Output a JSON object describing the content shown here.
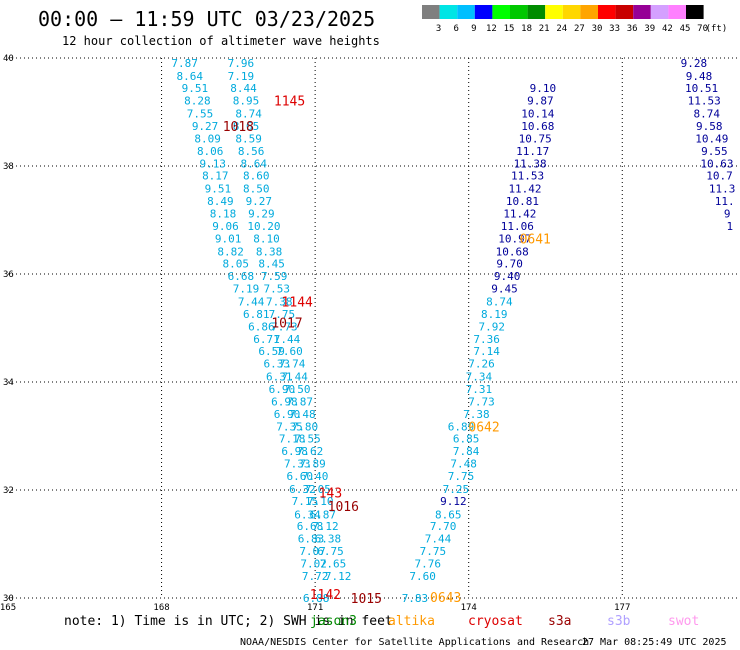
{
  "title": "00:00 – 11:59 UTC 03/23/2025",
  "subtitle": "12 hour collection of altimeter wave heights",
  "note": "note:  1) Time is in UTC; 2) SWH is in feet",
  "credit": "NOAA/NESDIS Center for Satellite Applications and Research",
  "timestamp": "27 Mar 08:25:49 UTC 2025",
  "colorbar": {
    "unit_label": "(ft)",
    "bins": [
      {
        "label": "3",
        "color": "#7f7f7f"
      },
      {
        "label": "6",
        "color": "#00e5e5"
      },
      {
        "label": "9",
        "color": "#00bfff"
      },
      {
        "label": "12",
        "color": "#0000ff"
      },
      {
        "label": "15",
        "color": "#00ff00"
      },
      {
        "label": "18",
        "color": "#00c800"
      },
      {
        "label": "21",
        "color": "#008c00"
      },
      {
        "label": "24",
        "color": "#ffff00"
      },
      {
        "label": "27",
        "color": "#ffd700"
      },
      {
        "label": "30",
        "color": "#ffa500"
      },
      {
        "label": "33",
        "color": "#ff0000"
      },
      {
        "label": "36",
        "color": "#c80000"
      },
      {
        "label": "39",
        "color": "#960096"
      },
      {
        "label": "42",
        "color": "#d4a0ff"
      },
      {
        "label": "45",
        "color": "#ff80ff"
      },
      {
        "label": "70",
        "color": "#000000"
      }
    ]
  },
  "legend": [
    {
      "name": "jason3",
      "color": "#008800"
    },
    {
      "name": "altika",
      "color": "#ff9900"
    },
    {
      "name": "cryosat",
      "color": "#dd0000"
    },
    {
      "name": "s3a",
      "color": "#990000"
    },
    {
      "name": "s3b",
      "color": "#b0a0ff"
    },
    {
      "name": "swot",
      "color": "#ff99ee"
    }
  ],
  "chart_data": {
    "type": "scatter",
    "x_ticks": [
      "165",
      "168",
      "171",
      "174",
      "177"
    ],
    "y_ticks": [
      "30",
      "32",
      "34",
      "36",
      "38",
      "40"
    ],
    "xlim": [
      165,
      179.3
    ],
    "ylim": [
      30,
      40
    ],
    "grid": true,
    "colors": {
      "c1": "#00aadd",
      "c2": "#000099"
    },
    "series": [
      {
        "color": "c1",
        "points": [
          [
            168.45,
            39.91,
            "7.87"
          ],
          [
            168.55,
            39.67,
            "8.64"
          ],
          [
            168.65,
            39.44,
            "9.51"
          ],
          [
            168.7,
            39.21,
            "8.28"
          ],
          [
            168.75,
            38.97,
            "7.55"
          ],
          [
            168.85,
            38.74,
            "9.27"
          ],
          [
            168.9,
            38.51,
            "8.09"
          ],
          [
            168.95,
            38.28,
            "8.06"
          ],
          [
            169.0,
            38.05,
            "9.13"
          ],
          [
            169.05,
            37.82,
            "8.17"
          ],
          [
            169.1,
            37.58,
            "9.51"
          ],
          [
            169.15,
            37.35,
            "8.49"
          ],
          [
            169.2,
            37.12,
            "8.18"
          ],
          [
            169.25,
            36.89,
            "9.06"
          ],
          [
            169.3,
            36.66,
            "9.01"
          ],
          [
            169.35,
            36.42,
            "8.82"
          ],
          [
            169.45,
            36.19,
            "8.05"
          ],
          [
            169.55,
            35.96,
            "6.68"
          ],
          [
            169.65,
            35.73,
            "7.19"
          ],
          [
            169.75,
            35.49,
            "7.44"
          ],
          [
            169.85,
            35.26,
            "6.81"
          ],
          [
            169.95,
            35.03,
            "6.86"
          ],
          [
            170.05,
            34.8,
            "6.71"
          ],
          [
            170.15,
            34.57,
            "6.59"
          ],
          [
            170.25,
            34.34,
            "6.33"
          ],
          [
            170.3,
            34.1,
            "6.31"
          ],
          [
            170.35,
            33.87,
            "6.90"
          ],
          [
            170.4,
            33.64,
            "6.98"
          ],
          [
            170.45,
            33.41,
            "6.90"
          ],
          [
            170.5,
            33.18,
            "7.35"
          ],
          [
            170.55,
            32.95,
            "7.18"
          ],
          [
            170.6,
            32.72,
            "6.98"
          ],
          [
            170.65,
            32.49,
            "7.33"
          ],
          [
            170.7,
            32.26,
            "6.60"
          ],
          [
            170.75,
            32.02,
            "6.32"
          ],
          [
            170.8,
            31.8,
            "7.15"
          ],
          [
            170.85,
            31.55,
            "6.34"
          ],
          [
            170.9,
            31.33,
            "6.68"
          ],
          [
            170.92,
            31.1,
            "6.83"
          ],
          [
            170.95,
            30.87,
            "7.07"
          ],
          [
            170.97,
            30.64,
            "7.02"
          ],
          [
            171.0,
            30.41,
            "7.72"
          ],
          [
            171.02,
            30.0,
            "6.88"
          ]
        ]
      },
      {
        "color": "c1",
        "points": [
          [
            169.55,
            39.91,
            "7.96"
          ],
          [
            169.55,
            39.67,
            "7.19"
          ],
          [
            169.6,
            39.44,
            "8.44"
          ],
          [
            169.65,
            39.21,
            "8.95"
          ],
          [
            169.7,
            38.97,
            "8.74"
          ],
          [
            169.65,
            38.74,
            "8.65"
          ],
          [
            169.7,
            38.51,
            "8.59"
          ],
          [
            169.75,
            38.28,
            "8.56"
          ],
          [
            169.8,
            38.05,
            "8.64"
          ],
          [
            169.85,
            37.82,
            "8.60"
          ],
          [
            169.85,
            37.58,
            "8.50"
          ],
          [
            169.9,
            37.35,
            "9.27"
          ],
          [
            169.95,
            37.12,
            "9.29"
          ],
          [
            170.0,
            36.89,
            "10.20"
          ],
          [
            170.05,
            36.66,
            "8.10"
          ],
          [
            170.1,
            36.42,
            "8.38"
          ],
          [
            170.15,
            36.19,
            "8.45"
          ],
          [
            170.2,
            35.96,
            "7.59"
          ],
          [
            170.25,
            35.73,
            "7.53"
          ],
          [
            170.3,
            35.49,
            "7.38"
          ],
          [
            170.35,
            35.26,
            "7.75"
          ],
          [
            170.4,
            35.03,
            "7.73"
          ],
          [
            170.45,
            34.8,
            "7.44"
          ],
          [
            170.5,
            34.57,
            "7.60"
          ],
          [
            170.55,
            34.34,
            "7.74"
          ],
          [
            170.6,
            34.1,
            "7.44"
          ],
          [
            170.65,
            33.87,
            "7.50"
          ],
          [
            170.7,
            33.64,
            "7.87"
          ],
          [
            170.75,
            33.41,
            "7.48"
          ],
          [
            170.8,
            33.18,
            "7.80"
          ],
          [
            170.85,
            32.95,
            "7.55"
          ],
          [
            170.9,
            32.72,
            "7.62"
          ],
          [
            170.95,
            32.49,
            "7.89"
          ],
          [
            171.0,
            32.26,
            "7.40"
          ],
          [
            171.05,
            32.02,
            "7.05"
          ],
          [
            171.1,
            31.8,
            "7.10"
          ],
          [
            171.15,
            31.55,
            "6.87"
          ],
          [
            171.2,
            31.33,
            "7.12"
          ],
          [
            171.25,
            31.1,
            "6.38"
          ],
          [
            171.3,
            30.87,
            "6.75"
          ],
          [
            171.35,
            30.64,
            "7.65"
          ],
          [
            171.45,
            30.41,
            "7.12"
          ]
        ]
      },
      {
        "color": "c1",
        "points": [
          [
            173.85,
            33.18,
            "6.89"
          ],
          [
            173.95,
            32.95,
            "6.85"
          ],
          [
            173.95,
            32.72,
            "7.84"
          ],
          [
            173.9,
            32.49,
            "7.48"
          ],
          [
            173.85,
            32.26,
            "7.75"
          ],
          [
            173.75,
            32.02,
            "7.25"
          ],
          [
            173.6,
            31.55,
            "8.65"
          ],
          [
            173.5,
            31.33,
            "7.70"
          ],
          [
            173.4,
            31.1,
            "7.44"
          ],
          [
            173.3,
            30.87,
            "7.75"
          ],
          [
            173.2,
            30.64,
            "7.76"
          ],
          [
            173.1,
            30.41,
            "7.60"
          ],
          [
            172.95,
            30.0,
            "7.83"
          ]
        ]
      },
      {
        "color": "c1",
        "points": [
          [
            174.25,
            33.64,
            "7.73"
          ],
          [
            174.15,
            33.41,
            "7.38"
          ],
          [
            174.2,
            33.87,
            "7.31"
          ],
          [
            174.2,
            34.1,
            "7.34"
          ],
          [
            174.25,
            34.34,
            "7.26"
          ],
          [
            174.35,
            34.57,
            "7.14"
          ],
          [
            174.35,
            34.8,
            "7.36"
          ],
          [
            174.45,
            35.03,
            "7.92"
          ],
          [
            174.5,
            35.26,
            "8.19"
          ],
          [
            174.6,
            35.49,
            "8.74"
          ]
        ]
      },
      {
        "color": "c2",
        "points": [
          [
            173.7,
            31.8,
            "9.12"
          ],
          [
            174.7,
            35.73,
            "9.45"
          ],
          [
            174.75,
            35.96,
            "9.40"
          ],
          [
            174.8,
            36.19,
            "9.70"
          ],
          [
            174.85,
            36.42,
            "10.68"
          ],
          [
            174.9,
            36.66,
            "10.97"
          ],
          [
            174.95,
            36.89,
            "11.06"
          ],
          [
            175.0,
            37.12,
            "11.42"
          ],
          [
            175.05,
            37.35,
            "10.81"
          ],
          [
            175.1,
            37.58,
            "11.42"
          ],
          [
            175.15,
            37.82,
            "11.53"
          ],
          [
            175.2,
            38.05,
            "11.38"
          ],
          [
            175.25,
            38.28,
            "11.17"
          ],
          [
            175.3,
            38.51,
            "10.75"
          ],
          [
            175.35,
            38.74,
            "10.68"
          ],
          [
            175.35,
            38.97,
            "10.14"
          ],
          [
            175.4,
            39.21,
            "9.87"
          ],
          [
            175.45,
            39.44,
            "9.10"
          ]
        ]
      },
      {
        "color": "c2",
        "points": [
          [
            178.4,
            39.91,
            "9.28"
          ],
          [
            178.5,
            39.67,
            "9.48"
          ],
          [
            178.55,
            39.44,
            "10.51"
          ],
          [
            178.6,
            39.21,
            "11.53"
          ],
          [
            178.65,
            38.97,
            "8.74"
          ],
          [
            178.7,
            38.74,
            "9.58"
          ],
          [
            178.75,
            38.51,
            "10.49"
          ],
          [
            178.8,
            38.28,
            "9.55"
          ],
          [
            178.85,
            38.05,
            "10.63"
          ],
          [
            178.9,
            37.82,
            "10.7"
          ],
          [
            178.95,
            37.58,
            "11.3"
          ],
          [
            179.0,
            37.35,
            "11."
          ],
          [
            179.05,
            37.12,
            "9"
          ],
          [
            179.1,
            36.89,
            "1"
          ]
        ]
      }
    ],
    "time_labels": [
      {
        "text": "1145",
        "x": 170.5,
        "y": 39.21,
        "color": "#dd0000"
      },
      {
        "text": "1018",
        "x": 169.5,
        "y": 38.74,
        "color": "#990000"
      },
      {
        "text": "1144",
        "x": 170.65,
        "y": 35.49,
        "color": "#dd0000"
      },
      {
        "text": "1017",
        "x": 170.45,
        "y": 35.1,
        "color": "#990000"
      },
      {
        "text": "0641",
        "x": 175.3,
        "y": 36.66,
        "color": "#ff9900"
      },
      {
        "text": "0642",
        "x": 174.3,
        "y": 33.18,
        "color": "#ff9900"
      },
      {
        "text": "143",
        "x": 171.3,
        "y": 31.95,
        "color": "#dd0000"
      },
      {
        "text": "1016",
        "x": 171.55,
        "y": 31.7,
        "color": "#990000"
      },
      {
        "text": "1142",
        "x": 171.2,
        "y": 30.07,
        "color": "#dd0000"
      },
      {
        "text": "1015",
        "x": 172.0,
        "y": 30.0,
        "color": "#990000"
      },
      {
        "text": "0643",
        "x": 173.55,
        "y": 30.02,
        "color": "#ff9900"
      }
    ]
  }
}
